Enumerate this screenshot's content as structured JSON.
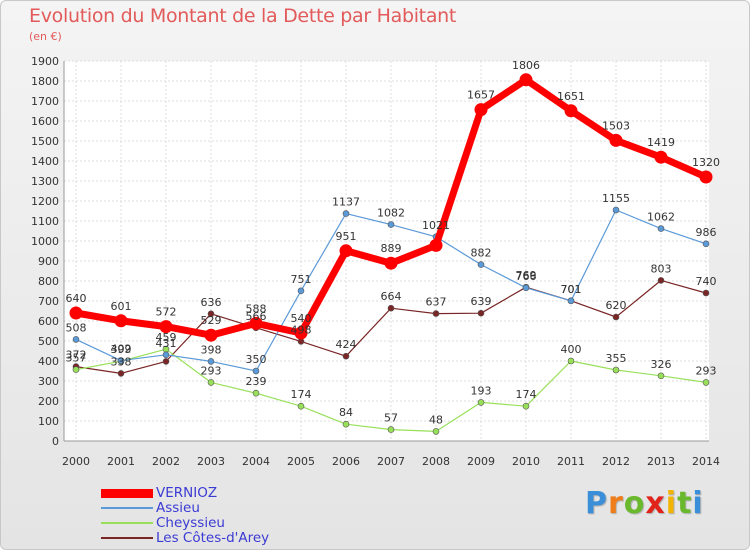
{
  "brand": {
    "letters": [
      {
        "ch": "P",
        "color": "#3a8fd8"
      },
      {
        "ch": "r",
        "color": "#ef7d1a"
      },
      {
        "ch": "o",
        "color": "#6ab82c"
      },
      {
        "ch": "x",
        "color": "#e2231a"
      },
      {
        "ch": "i",
        "color": "#f2b400"
      },
      {
        "ch": "t",
        "color": "#6ab82c"
      },
      {
        "ch": "i",
        "color": "#3a8fd8"
      }
    ]
  },
  "chart_data": {
    "type": "line",
    "title": "Evolution du Montant de la Dette par Habitant",
    "subtitle": "(en €)",
    "categories": [
      "2000",
      "2001",
      "2002",
      "2003",
      "2004",
      "2005",
      "2006",
      "2007",
      "2008",
      "2009",
      "2010",
      "2011",
      "2012",
      "2013",
      "2014"
    ],
    "ylim": [
      0,
      1900
    ],
    "yticks": [
      0,
      100,
      200,
      300,
      400,
      500,
      600,
      700,
      800,
      900,
      1000,
      1100,
      1200,
      1300,
      1400,
      1500,
      1600,
      1700,
      1800,
      1900
    ],
    "grid": true,
    "legend_position": "bottom-left",
    "series": [
      {
        "name": "Les Côtes-d'Arey",
        "color": "#7a2626",
        "width": 1.2,
        "values": [
          372,
          338,
          398,
          636,
          566,
          498,
          424,
          664,
          637,
          639,
          769,
          701,
          620,
          803,
          740
        ],
        "labels": [
          "372",
          "338",
          "",
          "636",
          "566",
          "498",
          "424",
          "664",
          "637",
          "639",
          "769",
          "701",
          "620",
          "803",
          "740"
        ]
      },
      {
        "name": "Cheyssieu",
        "color": "#98e05a",
        "width": 1.2,
        "values": [
          357,
          399,
          459,
          293,
          239,
          174,
          84,
          57,
          48,
          193,
          174,
          400,
          355,
          326,
          293
        ],
        "labels": [
          "357",
          "399",
          "459",
          "293",
          "239",
          "174",
          "84",
          "57",
          "48",
          "193",
          "174",
          "400",
          "355",
          "326",
          "293"
        ]
      },
      {
        "name": "Assieu",
        "color": "#5b9ad8",
        "width": 1.2,
        "values": [
          508,
          402,
          431,
          398,
          350,
          751,
          1137,
          1082,
          1021,
          882,
          766,
          701,
          1155,
          1062,
          986
        ],
        "labels": [
          "508",
          "402",
          "431",
          "398",
          "350",
          "751",
          "1137",
          "1082",
          "1021",
          "882",
          "766",
          "701",
          "1155",
          "1062",
          "986"
        ]
      },
      {
        "name": "VERNIOZ",
        "color": "#ff0000",
        "width": 7,
        "values": [
          640,
          601,
          572,
          529,
          588,
          540,
          951,
          889,
          978,
          1657,
          1806,
          1651,
          1503,
          1419,
          1320
        ],
        "labels": [
          "640",
          "601",
          "572",
          "529",
          "588",
          "540",
          "951",
          "889",
          "",
          "1657",
          "1806",
          "1651",
          "1503",
          "1419",
          "1320"
        ]
      }
    ]
  },
  "legend": [
    {
      "label": "VERNIOZ",
      "color": "#ff0000",
      "thickness": 9
    },
    {
      "label": "Assieu",
      "color": "#5b9ad8",
      "thickness": 2
    },
    {
      "label": "Cheyssieu",
      "color": "#98e05a",
      "thickness": 2
    },
    {
      "label": "Les Côtes-d'Arey",
      "color": "#7a2626",
      "thickness": 2
    }
  ]
}
